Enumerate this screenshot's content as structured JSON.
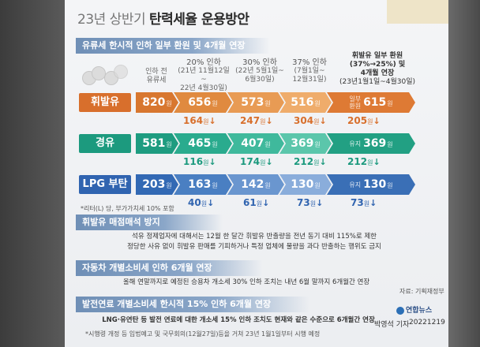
{
  "title": {
    "part1": "23년 상반기",
    "part2": "탄력세율 운용방안"
  },
  "sections": {
    "s1": "유류세 한시적 인하 일부 환원 및 4개월 연장",
    "s2": "휘발유 매점매석 방지",
    "s3": "자동차 개별소비세 인하 6개월 연장",
    "s4": "발전연료 개별소비세 한시적 15% 인하 6개월 연장"
  },
  "headers": {
    "before": [
      "인하 전",
      "유류세"
    ],
    "col1": [
      "20% 인하",
      "(21년 11월12일~",
      "22년 4월30일)"
    ],
    "col2": [
      "30% 인하",
      "(22년 5월1일~",
      "6월30일)"
    ],
    "col3": [
      "37% 인하",
      "(7월1일~",
      "12월31일)"
    ],
    "col4": [
      "휘발유 일부 환원",
      "(37%→25%) 및",
      "4개월 연장",
      "(23년1월1일~4월30일)"
    ]
  },
  "unit": "원",
  "rows": [
    {
      "label": "휘발유",
      "before": "820",
      "v1": "656",
      "v2": "573",
      "v3": "516",
      "v4_prefix1": "일부",
      "v4_prefix2": "환원",
      "v4": "615",
      "d1": "164",
      "d2": "247",
      "d3": "304",
      "d4": "205"
    },
    {
      "label": "경유",
      "before": "581",
      "v1": "465",
      "v2": "407",
      "v3": "369",
      "v4_prefix1": "유지",
      "v4_prefix2": "",
      "v4": "369",
      "d1": "116",
      "d2": "174",
      "d3": "212",
      "d4": "212"
    },
    {
      "label": "LPG 부탄",
      "before": "203",
      "v1": "163",
      "v2": "142",
      "v3": "130",
      "v4_prefix1": "유지",
      "v4_prefix2": "",
      "v4": "130",
      "d1": "40",
      "d2": "61",
      "d3": "73",
      "d4": "73"
    }
  ],
  "arrow": "↓",
  "unit_note": "*리터(L) 당, 부가가치세 10% 포함",
  "s2_text": [
    "석유 정제업자에 대해서는 12월 한 달간 휘발유 반출량을 전년 동기 대비 115%로 제한",
    "정당한 사유 없이 휘발유 판매를 기피하거나 특정 업체에 물량을 과다 반출하는 행위도 금지"
  ],
  "s3_text": "올해 연말까지로 예정된 승용차 개소세 30% 인하 조치는 내년 6월 말까지 6개월간 연장",
  "s4_text": "LNG·유연탄 등 발전 연료에 대한 개소세 15% 인하 조치도 현재와 같은 수준으로 6개월간 연장",
  "footnote": "*시행령 개정 등 입법예고 및 국무회의(12월27일)등을 거쳐 23년 1월1일부터 시행 예정",
  "source": "자료: 기획재정부",
  "logo": "연합뉴스",
  "reporter": "박영석 기자",
  "date": "20221219",
  "colors": {
    "gasoline": "#d86f2c",
    "diesel": "#1c9a7e",
    "lpg": "#3064b0",
    "section": "#7d9bc0"
  }
}
